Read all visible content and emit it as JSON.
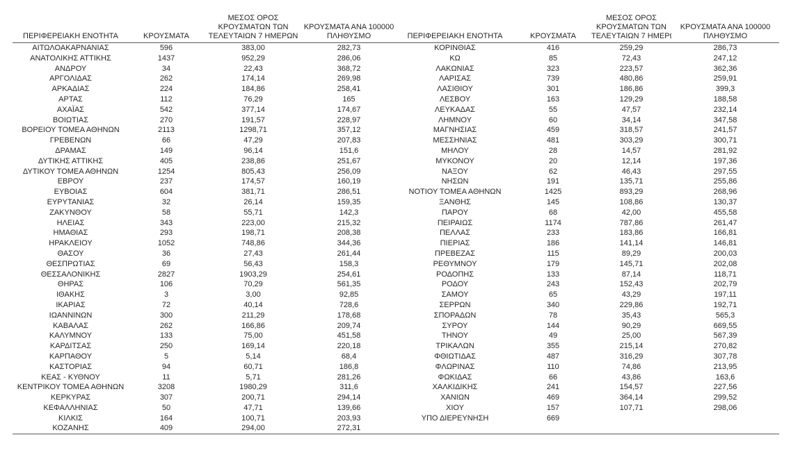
{
  "table": {
    "headers": {
      "region": "ΠΕΡΙΦΕΡΕΙΑΚΗ ΕΝΟΤΗΤΑ",
      "cases": "ΚΡΟΥΣΜΑΤΑ",
      "avg7_lines": [
        "ΜΕΣΟΣ ΟΡΟΣ",
        "ΚΡΟΥΣΜΑΤΩΝ ΤΩΝ",
        "ΤΕΛΕΥΤΑΙΩΝ 7 ΗΜΕΡΩΝ"
      ],
      "per100k_lines": [
        "ΚΡΟΥΣΜΑΤΑ ΑΝΑ 100000",
        "ΠΛΗΘΥΣΜΟ"
      ]
    },
    "left_rows": [
      [
        "ΑΙΤΩΛΟΑΚΑΡΝΑΝΙΑΣ",
        "596",
        "383,00",
        "282,73"
      ],
      [
        "ΑΝΑΤΟΛΙΚΗΣ ΑΤΤΙΚΗΣ",
        "1437",
        "952,29",
        "286,06"
      ],
      [
        "ΑΝΔΡΟΥ",
        "34",
        "22,43",
        "368,72"
      ],
      [
        "ΑΡΓΟΛΙΔΑΣ",
        "262",
        "174,14",
        "269,98"
      ],
      [
        "ΑΡΚΑΔΙΑΣ",
        "224",
        "184,86",
        "258,41"
      ],
      [
        "ΑΡΤΑΣ",
        "112",
        "76,29",
        "165"
      ],
      [
        "ΑΧΑΪΑΣ",
        "542",
        "377,14",
        "174,67"
      ],
      [
        "ΒΟΙΩΤΙΑΣ",
        "270",
        "191,57",
        "228,97"
      ],
      [
        "ΒΟΡΕΙΟΥ ΤΟΜΕΑ ΑΘΗΝΩΝ",
        "2113",
        "1298,71",
        "357,12"
      ],
      [
        "ΓΡΕΒΕΝΩΝ",
        "66",
        "47,29",
        "207,83"
      ],
      [
        "ΔΡΑΜΑΣ",
        "149",
        "96,14",
        "151,6"
      ],
      [
        "ΔΥΤΙΚΗΣ ΑΤΤΙΚΗΣ",
        "405",
        "238,86",
        "251,67"
      ],
      [
        "ΔΥΤΙΚΟΥ ΤΟΜΕΑ ΑΘΗΝΩΝ",
        "1254",
        "805,43",
        "256,09"
      ],
      [
        "ΕΒΡΟΥ",
        "237",
        "174,57",
        "160,19"
      ],
      [
        "ΕΥΒΟΙΑΣ",
        "604",
        "381,71",
        "286,51"
      ],
      [
        "ΕΥΡΥΤΑΝΙΑΣ",
        "32",
        "26,14",
        "159,35"
      ],
      [
        "ΖΑΚΥΝΘΟΥ",
        "58",
        "55,71",
        "142,3"
      ],
      [
        "ΗΛΕΙΑΣ",
        "343",
        "223,00",
        "215,32"
      ],
      [
        "ΗΜΑΘΙΑΣ",
        "293",
        "198,71",
        "208,38"
      ],
      [
        "ΗΡΑΚΛΕΙΟΥ",
        "1052",
        "748,86",
        "344,36"
      ],
      [
        "ΘΑΣΟΥ",
        "36",
        "27,43",
        "261,44"
      ],
      [
        "ΘΕΣΠΡΩΤΙΑΣ",
        "69",
        "56,43",
        "158,3"
      ],
      [
        "ΘΕΣΣΑΛΟΝΙΚΗΣ",
        "2827",
        "1903,29",
        "254,61"
      ],
      [
        "ΘΗΡΑΣ",
        "106",
        "70,29",
        "561,35"
      ],
      [
        "ΙΘΑΚΗΣ",
        "3",
        "3,00",
        "92,85"
      ],
      [
        "ΙΚΑΡΙΑΣ",
        "72",
        "40,14",
        "728,6"
      ],
      [
        "ΙΩΑΝΝΙΝΩΝ",
        "300",
        "211,29",
        "178,68"
      ],
      [
        "ΚΑΒΑΛΑΣ",
        "262",
        "166,86",
        "209,74"
      ],
      [
        "ΚΑΛΥΜΝΟΥ",
        "133",
        "75,00",
        "451,58"
      ],
      [
        "ΚΑΡΔΙΤΣΑΣ",
        "250",
        "169,14",
        "220,18"
      ],
      [
        "ΚΑΡΠΑΘΟΥ",
        "5",
        "5,14",
        "68,4"
      ],
      [
        "ΚΑΣΤΟΡΙΑΣ",
        "94",
        "60,71",
        "186,8"
      ],
      [
        "ΚΕΑΣ - ΚΥΘΝΟΥ",
        "11",
        "5,71",
        "281,26"
      ],
      [
        "ΚΕΝΤΡΙΚΟΥ ΤΟΜΕΑ ΑΘΗΝΩΝ",
        "3208",
        "1980,29",
        "311,6"
      ],
      [
        "ΚΕΡΚΥΡΑΣ",
        "307",
        "200,71",
        "294,14"
      ],
      [
        "ΚΕΦΑΛΛΗΝΙΑΣ",
        "50",
        "47,71",
        "139,66"
      ],
      [
        "ΚΙΛΚΙΣ",
        "164",
        "100,71",
        "203,93"
      ],
      [
        "ΚΟΖΑΝΗΣ",
        "409",
        "294,00",
        "272,31"
      ]
    ],
    "right_rows": [
      [
        "ΚΟΡΙΝΘΙΑΣ",
        "416",
        "259,29",
        "286,73"
      ],
      [
        "ΚΩ",
        "85",
        "72,43",
        "247,12"
      ],
      [
        "ΛΑΚΩΝΙΑΣ",
        "323",
        "223,57",
        "362,36"
      ],
      [
        "ΛΑΡΙΣΑΣ",
        "739",
        "480,86",
        "259,91"
      ],
      [
        "ΛΑΣΙΘΙΟΥ",
        "301",
        "186,86",
        "399,3"
      ],
      [
        "ΛΕΣΒΟΥ",
        "163",
        "129,29",
        "188,58"
      ],
      [
        "ΛΕΥΚΑΔΑΣ",
        "55",
        "47,57",
        "232,14"
      ],
      [
        "ΛΗΜΝΟΥ",
        "60",
        "34,14",
        "347,58"
      ],
      [
        "ΜΑΓΝΗΣΙΑΣ",
        "459",
        "318,57",
        "241,57"
      ],
      [
        "ΜΕΣΣΗΝΙΑΣ",
        "481",
        "303,29",
        "300,71"
      ],
      [
        "ΜΗΛΟΥ",
        "28",
        "14,57",
        "281,92"
      ],
      [
        "ΜΥΚΟΝΟΥ",
        "20",
        "12,14",
        "197,36"
      ],
      [
        "ΝΑΞΟΥ",
        "62",
        "46,43",
        "297,55"
      ],
      [
        "ΝΗΣΩΝ",
        "191",
        "135,71",
        "255,86"
      ],
      [
        "ΝΟΤΙΟΥ ΤΟΜΕΑ ΑΘΗΝΩΝ",
        "1425",
        "893,29",
        "268,96"
      ],
      [
        "ΞΑΝΘΗΣ",
        "145",
        "108,86",
        "130,37"
      ],
      [
        "ΠΑΡΟΥ",
        "68",
        "42,00",
        "455,58"
      ],
      [
        "ΠΕΙΡΑΙΩΣ",
        "1174",
        "787,86",
        "261,47"
      ],
      [
        "ΠΕΛΛΑΣ",
        "233",
        "183,86",
        "166,81"
      ],
      [
        "ΠΙΕΡΙΑΣ",
        "186",
        "141,14",
        "146,81"
      ],
      [
        "ΠΡΕΒΕΖΑΣ",
        "115",
        "89,29",
        "200,03"
      ],
      [
        "ΡΕΘΥΜΝΟΥ",
        "179",
        "145,71",
        "202,08"
      ],
      [
        "ΡΟΔΟΠΗΣ",
        "133",
        "87,14",
        "118,71"
      ],
      [
        "ΡΟΔΟΥ",
        "243",
        "152,43",
        "202,79"
      ],
      [
        "ΣΑΜΟΥ",
        "65",
        "43,29",
        "197,11"
      ],
      [
        "ΣΕΡΡΩΝ",
        "340",
        "229,86",
        "192,71"
      ],
      [
        "ΣΠΟΡΑΔΩΝ",
        "78",
        "35,43",
        "565,3"
      ],
      [
        "ΣΥΡΟΥ",
        "144",
        "90,29",
        "669,55"
      ],
      [
        "ΤΗΝΟΥ",
        "49",
        "25,00",
        "567,39"
      ],
      [
        "ΤΡΙΚΑΛΩΝ",
        "355",
        "215,14",
        "270,82"
      ],
      [
        "ΦΘΙΩΤΙΔΑΣ",
        "487",
        "316,29",
        "307,78"
      ],
      [
        "ΦΛΩΡΙΝΑΣ",
        "110",
        "74,86",
        "213,95"
      ],
      [
        "ΦΩΚΙΔΑΣ",
        "66",
        "43,86",
        "163,6"
      ],
      [
        "ΧΑΛΚΙΔΙΚΗΣ",
        "241",
        "154,57",
        "227,56"
      ],
      [
        "ΧΑΝΙΩΝ",
        "469",
        "364,14",
        "299,52"
      ],
      [
        "ΧΙΟΥ",
        "157",
        "107,71",
        "298,06"
      ],
      [
        "ΥΠΟ ΔΙΕΡΕΥΝΗΣΗ",
        "669",
        "",
        ""
      ]
    ]
  }
}
